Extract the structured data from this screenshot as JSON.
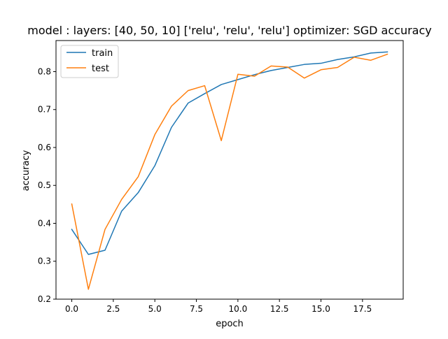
{
  "chart_data": {
    "type": "line",
    "title": "model : layers: [40, 50, 10] ['relu', 'relu', 'relu'] optimizer: SGD accuracy",
    "xlabel": "epoch",
    "ylabel": "accuracy",
    "xlim": [
      -0.95,
      19.95
    ],
    "ylim": [
      0.2,
      0.882
    ],
    "xticks": [
      0,
      2.5,
      5,
      7.5,
      10,
      12.5,
      15,
      17.5
    ],
    "xtick_labels": [
      "0.0",
      "2.5",
      "5.0",
      "7.5",
      "10.0",
      "12.5",
      "15.0",
      "17.5"
    ],
    "yticks": [
      0.2,
      0.3,
      0.4,
      0.5,
      0.6,
      0.7,
      0.8
    ],
    "ytick_labels": [
      "0.2",
      "0.3",
      "0.4",
      "0.5",
      "0.6",
      "0.7",
      "0.8"
    ],
    "grid": false,
    "legend_position": "top-left",
    "x": [
      0,
      1,
      2,
      3,
      4,
      5,
      6,
      7,
      8,
      9,
      10,
      11,
      12,
      13,
      14,
      15,
      16,
      17,
      18,
      19
    ],
    "series": [
      {
        "name": "train",
        "color": "#1f77b4",
        "values": [
          0.384,
          0.318,
          0.329,
          0.432,
          0.481,
          0.552,
          0.653,
          0.717,
          0.742,
          0.766,
          0.779,
          0.792,
          0.803,
          0.811,
          0.819,
          0.822,
          0.832,
          0.839,
          0.849,
          0.852
        ]
      },
      {
        "name": "test",
        "color": "#ff7f0e",
        "values": [
          0.451,
          0.226,
          0.384,
          0.463,
          0.523,
          0.634,
          0.709,
          0.75,
          0.763,
          0.618,
          0.793,
          0.788,
          0.815,
          0.812,
          0.783,
          0.805,
          0.811,
          0.838,
          0.83,
          0.846
        ]
      }
    ]
  }
}
